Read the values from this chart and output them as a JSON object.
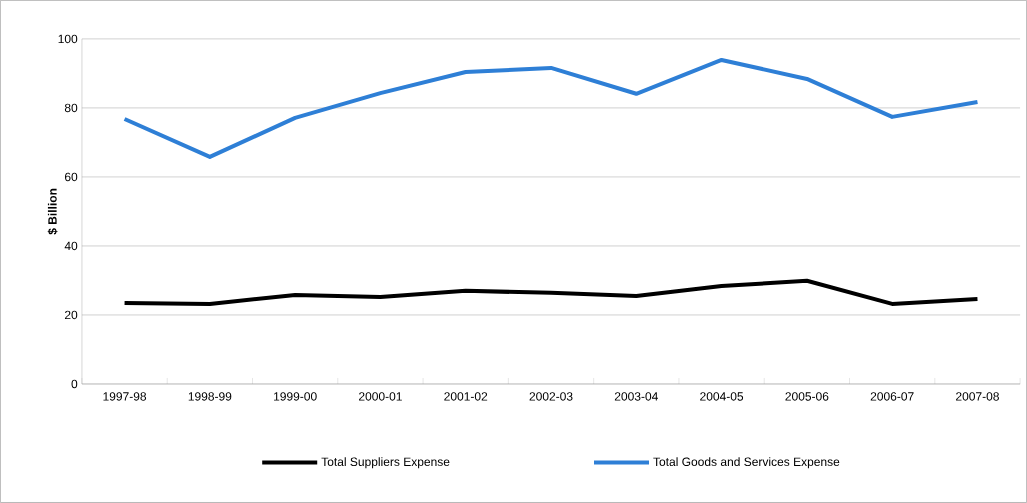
{
  "chart_data": {
    "type": "line",
    "ylabel": "$ Billion",
    "categories": [
      "1997-98",
      "1998-99",
      "1999-00",
      "2000-01",
      "2001-02",
      "2002-03",
      "2003-04",
      "2004-05",
      "2005-06",
      "2006-07",
      "2007-08"
    ],
    "series": [
      {
        "name": "Total Suppliers Expense",
        "color": "#000000",
        "values": [
          23.5,
          23.2,
          25.8,
          25.2,
          27.0,
          26.4,
          25.5,
          28.4,
          29.9,
          23.2,
          24.6
        ]
      },
      {
        "name": "Total Goods and Services Expense",
        "color": "#2e7fd6",
        "values": [
          76.8,
          65.8,
          77.1,
          84.3,
          90.4,
          91.6,
          84.1,
          93.9,
          88.4,
          77.4,
          81.7
        ]
      }
    ],
    "ylim": [
      0,
      100
    ],
    "yticks": [
      0,
      20,
      40,
      60,
      80,
      100
    ],
    "grid": "y",
    "legend": "bottom",
    "marker": "none",
    "line_style": "solid"
  }
}
